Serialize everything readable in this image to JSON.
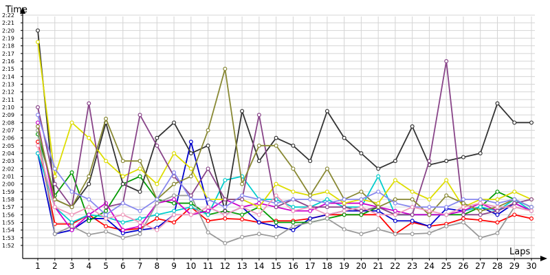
{
  "chart_data": {
    "type": "line",
    "title": "",
    "xlabel": "Laps",
    "ylabel": "Time",
    "x": [
      1,
      2,
      3,
      4,
      5,
      6,
      7,
      8,
      9,
      10,
      11,
      12,
      13,
      14,
      15,
      16,
      17,
      18,
      19,
      20,
      21,
      22,
      23,
      24,
      25,
      26,
      27,
      28,
      29,
      30
    ],
    "y_ticks": [
      "1:52",
      "1:53",
      "1:54",
      "1:55",
      "1:56",
      "1:57",
      "1:58",
      "1:59",
      "2:00",
      "2:01",
      "2:02",
      "2:03",
      "2:04",
      "2:05",
      "2:06",
      "2:07",
      "2:08",
      "2:09",
      "2:10",
      "2:11",
      "2:12",
      "2:13",
      "2:14",
      "2:15",
      "2:16",
      "2:17",
      "2:18",
      "2:19",
      "2:20",
      "2:21",
      "2:22"
    ],
    "ylim_seconds": [
      112,
      142
    ],
    "grid": true,
    "legend": "none",
    "series": [
      {
        "color": "#ff0000",
        "values": [
          125.5,
          114.8,
          114.8,
          116,
          114.5,
          114,
          114.2,
          115.5,
          115,
          117,
          115.2,
          115.5,
          115.4,
          115,
          115.2,
          115.2,
          115.5,
          116,
          116,
          116,
          116,
          113.5,
          115,
          114.5,
          114.8,
          115.5,
          115.3,
          115,
          116,
          115.5
        ]
      },
      {
        "color": "#0000cc",
        "values": [
          124,
          113.5,
          114,
          115.5,
          115.5,
          113.6,
          114,
          114.3,
          116,
          125.5,
          117,
          116,
          117,
          115,
          114.5,
          114,
          115.5,
          116,
          116.5,
          116.5,
          116.5,
          115.2,
          115.2,
          114.5,
          116.8,
          116.5,
          117,
          116,
          117.5,
          116.5
        ]
      },
      {
        "color": "#009900",
        "values": [
          126.5,
          118.5,
          121.5,
          115.2,
          116.5,
          120,
          121,
          118,
          117.5,
          117.5,
          116,
          116.5,
          116,
          117,
          115,
          115,
          115,
          115.5,
          116,
          116,
          117,
          116,
          116,
          116,
          116,
          116,
          117,
          119,
          118,
          117
        ]
      },
      {
        "color": "#00cccc",
        "values": [
          124,
          117,
          115,
          116,
          115.7,
          115,
          115.5,
          116,
          116.5,
          117,
          116,
          120.5,
          121,
          118,
          118,
          117,
          117,
          118,
          117,
          117,
          121,
          116,
          116,
          116,
          116,
          116.5,
          117,
          116.5,
          118,
          116.5
        ]
      },
      {
        "color": "#cc00cc",
        "values": [
          128,
          117,
          114,
          116,
          117.5,
          114,
          114.5,
          117.5,
          118,
          116,
          116.5,
          118,
          117,
          117.5,
          117,
          116.5,
          116.5,
          117.5,
          117.5,
          117.5,
          117,
          116.5,
          116,
          116,
          116,
          116.5,
          117.5,
          116.5,
          117.5,
          116.5
        ]
      },
      {
        "color": "#999999",
        "values": [
          127,
          113.5,
          114.5,
          113.4,
          113.8,
          113,
          113.5,
          117.5,
          118.5,
          118.5,
          113.7,
          112.3,
          113.1,
          113.5,
          113.1,
          114.5,
          115,
          115.5,
          114.1,
          113.5,
          114.1,
          113.5,
          113.5,
          113.6,
          114.5,
          115,
          113,
          113.6,
          117,
          116.5
        ]
      },
      {
        "color": "#333333",
        "values": [
          140,
          118,
          117,
          120,
          128,
          120,
          119,
          126,
          128,
          124,
          125,
          116.5,
          129.5,
          123,
          126,
          125,
          123,
          129.5,
          126,
          124,
          122,
          123,
          127.5,
          122.5,
          123,
          123.5,
          124,
          130.5,
          128,
          128
        ]
      },
      {
        "color": "#dddd00",
        "values": [
          138.5,
          121,
          128,
          126,
          123,
          121,
          122,
          120,
          124,
          122,
          118,
          118,
          118,
          117,
          120,
          119,
          118.5,
          119,
          117.5,
          118,
          117.5,
          120.5,
          119,
          118,
          120.5,
          117,
          118,
          118,
          119,
          118
        ]
      },
      {
        "color": "#884488",
        "values": [
          130,
          120,
          117,
          130.5,
          117,
          117.5,
          129,
          125,
          121,
          118.5,
          122,
          118,
          118,
          129,
          117,
          118,
          117,
          117,
          117,
          116.5,
          117,
          116,
          116,
          123,
          136,
          116,
          116,
          116.5,
          117.5,
          118
        ]
      },
      {
        "color": "#888833",
        "values": [
          127.5,
          118,
          117,
          121,
          128.5,
          123,
          123,
          118,
          120,
          121,
          127,
          135,
          120,
          125,
          125,
          122,
          118.5,
          122,
          118,
          119,
          117,
          118,
          118,
          116,
          118.5,
          117.5,
          116.5,
          117,
          118,
          117
        ]
      },
      {
        "color": "#8888ee",
        "values": [
          129,
          122,
          119,
          118,
          116,
          117.5,
          116.5,
          118,
          121.5,
          118,
          118,
          117,
          118.5,
          118,
          117.5,
          118,
          118,
          117.5,
          118,
          118,
          119,
          117.5,
          117,
          117,
          117,
          118,
          118,
          117.5,
          118,
          117
        ]
      },
      {
        "color": "#ee99bb",
        "values": [
          125,
          117,
          116,
          117,
          115.5,
          116,
          115,
          114,
          116,
          116,
          117,
          116,
          117,
          116,
          118.5,
          116.5,
          117,
          116,
          116.5,
          117,
          116,
          116,
          117,
          116.5,
          116,
          117,
          117.5,
          117,
          117,
          116.5
        ]
      }
    ]
  }
}
